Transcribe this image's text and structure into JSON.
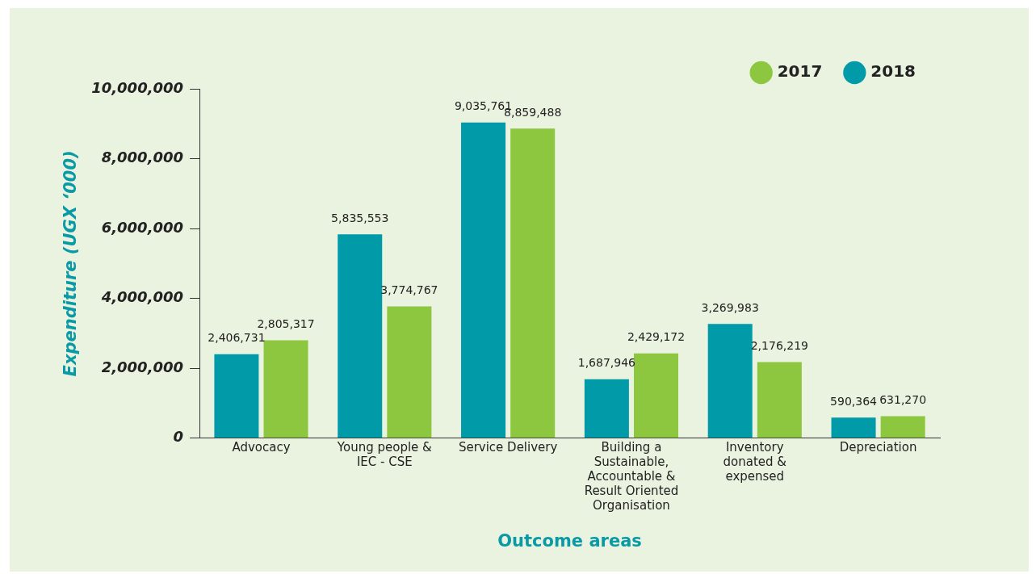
{
  "chart_data": {
    "type": "bar",
    "xlabel": "Outcome areas",
    "ylabel": "Expenditure (UGX ‘000)",
    "categories": [
      "Advocacy",
      "Young people & IEC - CSE",
      "Service Delivery",
      "Building a Sustainable, Accountable & Result Oriented Organisation",
      "Inventory donated & expensed",
      "Depreciation"
    ],
    "series": [
      {
        "name": "2018",
        "color": "#009aa8",
        "values": [
          2406731,
          5835553,
          9035761,
          1687946,
          3269983,
          590364
        ],
        "value_labels": [
          "2,406,731",
          "5,835,553",
          "9,035,761",
          "1,687,946",
          "3,269,983",
          "590,364"
        ]
      },
      {
        "name": "2017",
        "color": "#8dc63f",
        "values": [
          2805317,
          3774767,
          8859488,
          2429172,
          2176219,
          631270
        ],
        "value_labels": [
          "2,805,317",
          "3,774,767",
          "8,859,488",
          "2,429,172",
          "2,176,219",
          "631,270"
        ]
      }
    ],
    "ylim": [
      0,
      10000000
    ],
    "yticks": [
      {
        "value": 0,
        "label": "0"
      },
      {
        "value": 2000000,
        "label": "2,000,000"
      },
      {
        "value": 4000000,
        "label": "4,000,000"
      },
      {
        "value": 6000000,
        "label": "6,000,000"
      },
      {
        "value": 8000000,
        "label": "8,000,000"
      },
      {
        "value": 10000000,
        "label": "10,000,000"
      }
    ],
    "grid": false,
    "legend": "top right"
  }
}
